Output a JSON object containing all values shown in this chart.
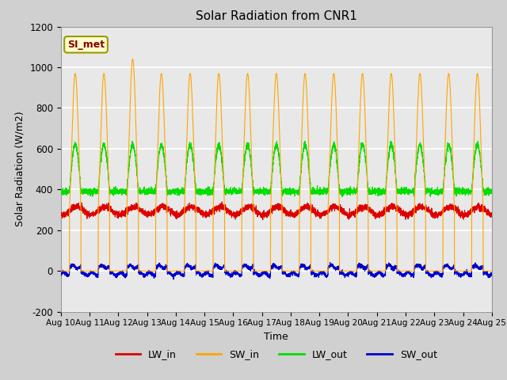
{
  "title": "Solar Radiation from CNR1",
  "xlabel": "Time",
  "ylabel": "Solar Radiation (W/m2)",
  "ylim": [
    -200,
    1200
  ],
  "yticks": [
    -200,
    0,
    200,
    400,
    600,
    800,
    1000,
    1200
  ],
  "x_tick_labels": [
    "Aug 10",
    "Aug 11",
    "Aug 12",
    "Aug 13",
    "Aug 14",
    "Aug 15",
    "Aug 16",
    "Aug 17",
    "Aug 18",
    "Aug 19",
    "Aug 20",
    "Aug 21",
    "Aug 22",
    "Aug 23",
    "Aug 24",
    "Aug 25"
  ],
  "fig_bg_color": "#d0d0d0",
  "plot_bg_color": "#e8e8e8",
  "grid_color": "#ffffff",
  "legend_label": "SI_met",
  "legend_box_color": "#ffffcc",
  "legend_box_edge": "#999900",
  "legend_text_color": "#880000",
  "colors": {
    "LW_in": "#dd0000",
    "SW_in": "#ffa500",
    "LW_out": "#00dd00",
    "SW_out": "#0000cc"
  },
  "series_labels": [
    "LW_in",
    "SW_in",
    "LW_out",
    "SW_out"
  ]
}
